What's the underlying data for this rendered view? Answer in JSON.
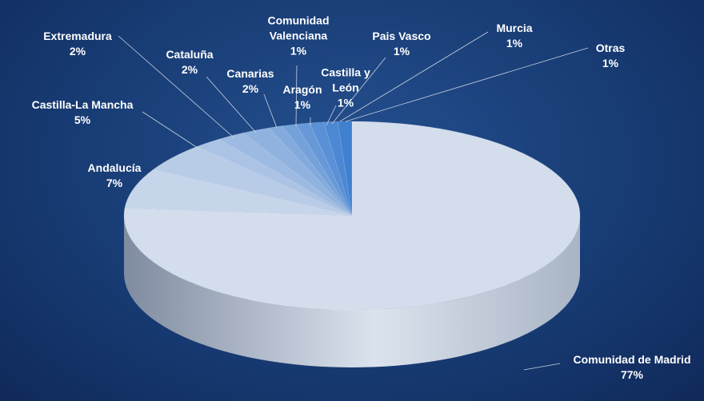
{
  "chart_data": {
    "type": "pie",
    "categories": [
      "Comunidad de Madrid",
      "Andalucía",
      "Castilla-La Mancha",
      "Extremadura",
      "Cataluña",
      "Canarias",
      "Comunidad Valenciana",
      "Aragón",
      "Castilla y León",
      "Pais Vasco",
      "Murcia",
      "Otras"
    ],
    "values": [
      77,
      7,
      5,
      2,
      2,
      2,
      1,
      1,
      1,
      1,
      1,
      1
    ],
    "value_labels": [
      "77%",
      "7%",
      "5%",
      "2%",
      "2%",
      "2%",
      "1%",
      "1%",
      "1%",
      "1%",
      "1%",
      "1%"
    ],
    "colors": [
      "#d3ddec",
      "#c6d5ea",
      "#b8cce7",
      "#abc3e4",
      "#9dbbe2",
      "#90b2df",
      "#82aadd",
      "#75a1da",
      "#6799d8",
      "#5a90d5",
      "#4c88d3",
      "#3f80d0"
    ]
  }
}
